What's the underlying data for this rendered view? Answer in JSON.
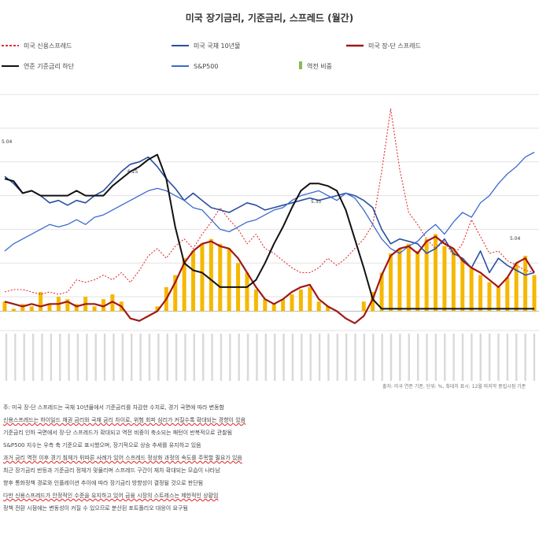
{
  "chart_data": {
    "type": "line",
    "title": "미국 장기금리, 기준금리, 스프레드 (월간)",
    "legend": [
      {
        "key": "credit_spread",
        "label": "미국 신용스프레드",
        "color": "#e03030",
        "style": "dashed"
      },
      {
        "key": "ust10y",
        "label": "미국 국채 10년물",
        "color": "#2a4fa0",
        "style": "solid"
      },
      {
        "key": "term_spread",
        "label": "미국 장-단 스프레드",
        "color": "#a01818",
        "style": "solid"
      },
      {
        "key": "fed_rate",
        "label": "연준 기준금리 하단",
        "color": "#111111",
        "style": "solid"
      },
      {
        "key": "sp500",
        "label": "S&P500",
        "color": "#3a6ad0",
        "style": "solid"
      },
      {
        "key": "rec",
        "label": "역전 비중",
        "color": "#88bb55",
        "style": "bar"
      }
    ],
    "x_tick_count": 60,
    "annotations": [
      "5.04",
      "6.25",
      "5.35",
      "5.04"
    ],
    "series": [
      {
        "name": "미국 신용스프레드",
        "values": [
          0.8,
          0.9,
          0.9,
          0.8,
          0.7,
          0.8,
          0.7,
          0.8,
          1.3,
          1.2,
          1.3,
          1.5,
          1.3,
          1.6,
          1.2,
          1.7,
          2.3,
          2.6,
          2.2,
          2.7,
          3.0,
          2.6,
          3.2,
          3.7,
          4.3,
          3.8,
          3.4,
          2.8,
          3.2,
          2.6,
          2.4,
          2.1,
          1.8,
          1.6,
          1.6,
          1.8,
          2.2,
          1.9,
          2.2,
          2.6,
          3.0,
          3.6,
          5.8,
          8.4,
          5.9,
          4.1,
          3.6,
          3.0,
          2.6,
          2.9,
          2.3,
          2.8,
          3.8,
          3.1,
          2.4,
          2.5,
          2.1,
          1.9,
          1.7,
          1.6
        ]
      },
      {
        "name": "미국 국채 10년물",
        "values": [
          5.6,
          5.3,
          4.9,
          5.0,
          4.8,
          4.5,
          4.6,
          4.4,
          4.6,
          4.5,
          4.8,
          5.0,
          5.4,
          5.8,
          6.1,
          6.2,
          6.4,
          6.0,
          5.5,
          5.1,
          4.6,
          4.9,
          4.6,
          4.3,
          4.2,
          4.1,
          4.3,
          4.5,
          4.4,
          4.2,
          4.3,
          4.4,
          4.5,
          4.6,
          4.7,
          4.6,
          4.7,
          4.8,
          4.9,
          4.8,
          4.6,
          4.3,
          3.4,
          2.8,
          3.0,
          2.9,
          2.8,
          2.4,
          2.6,
          3.0,
          2.4,
          2.2,
          1.8,
          2.5,
          1.6,
          2.2,
          1.9,
          1.7,
          1.5,
          1.6
        ]
      },
      {
        "name": "S&P500",
        "values": [
          2.5,
          2.8,
          3.0,
          3.2,
          3.4,
          3.6,
          3.5,
          3.6,
          3.8,
          3.6,
          3.9,
          4.0,
          4.2,
          4.4,
          4.6,
          4.8,
          5.0,
          5.1,
          5.0,
          4.8,
          4.6,
          4.3,
          4.2,
          3.8,
          3.4,
          3.3,
          3.5,
          3.7,
          3.8,
          4.0,
          4.2,
          4.3,
          4.6,
          4.8,
          4.9,
          5.0,
          4.8,
          4.6,
          4.9,
          4.7,
          4.2,
          3.6,
          3.0,
          2.6,
          2.4,
          2.7,
          2.9,
          3.3,
          3.6,
          3.2,
          3.7,
          4.1,
          3.9,
          4.5,
          4.8,
          5.3,
          5.7,
          6.0,
          6.4,
          6.6
        ]
      },
      {
        "name": "미국 장-단 스프레드",
        "values": [
          0.4,
          0.3,
          0.2,
          0.3,
          0.2,
          0.3,
          0.3,
          0.4,
          0.2,
          0.3,
          0.3,
          0.2,
          0.4,
          0.2,
          -0.3,
          -0.4,
          -0.2,
          0.0,
          0.5,
          1.2,
          2.0,
          2.5,
          2.8,
          2.9,
          2.7,
          2.6,
          2.2,
          1.6,
          1.0,
          0.5,
          0.3,
          0.5,
          0.8,
          1.0,
          1.1,
          0.5,
          0.2,
          0.0,
          -0.3,
          -0.5,
          -0.2,
          0.5,
          1.5,
          2.3,
          2.6,
          2.7,
          2.4,
          2.9,
          3.1,
          2.8,
          2.6,
          2.1,
          1.8,
          1.6,
          1.3,
          1.0,
          1.4,
          2.0,
          2.2,
          1.6
        ]
      },
      {
        "name": "연준 기준금리 하단",
        "values": [
          5.5,
          5.4,
          4.9,
          5.0,
          4.8,
          4.8,
          4.8,
          4.8,
          5.0,
          4.8,
          4.8,
          4.8,
          5.2,
          5.5,
          5.8,
          6.0,
          6.3,
          6.5,
          5.5,
          3.5,
          2.0,
          1.7,
          1.6,
          1.3,
          1.0,
          1.0,
          1.0,
          1.0,
          1.3,
          2.0,
          2.8,
          3.5,
          4.3,
          5.0,
          5.3,
          5.3,
          5.2,
          5.0,
          4.2,
          3.0,
          1.8,
          0.5,
          0.1,
          0.1,
          0.1,
          0.1,
          0.1,
          0.1,
          0.1,
          0.1,
          0.1,
          0.1,
          0.1,
          0.1,
          0.1,
          0.1,
          0.1,
          0.1,
          0.1,
          0.1
        ]
      },
      {
        "name": "역전 비중",
        "values": [
          0.4,
          0.1,
          0.3,
          0.2,
          0.8,
          0.3,
          0.6,
          0.5,
          0.3,
          0.6,
          0.2,
          0.5,
          0.7,
          0.4,
          0,
          0,
          0,
          0.2,
          1.0,
          1.5,
          2.2,
          2.5,
          2.8,
          3.0,
          2.8,
          2.6,
          2.0,
          1.6,
          0.9,
          0.5,
          0.3,
          0.5,
          0.7,
          0.9,
          1.0,
          0.4,
          0.2,
          0,
          0,
          0,
          0.4,
          0.8,
          1.6,
          2.4,
          2.6,
          2.8,
          2.5,
          3.0,
          3.2,
          2.7,
          2.6,
          2.2,
          1.8,
          1.5,
          1.2,
          1.0,
          1.4,
          2.0,
          2.3,
          1.5
        ]
      }
    ],
    "ylim": [
      -0.8,
      9.0
    ],
    "source": "출처: 미국 연준 기준, 단위: %, 최대치 표시: 12월 마지막 중립시점 기준",
    "grid": true,
    "legend_position": "top"
  },
  "notes": [
    "주: 미국 장-단 스프레드는 국채 10년물에서 기준금리를 차감한 수치로, 경기 국면에 따라 변동함",
    "신용스프레드는 하이일드 채권 금리와 국채 금리 차이로, 위험 회피 심리가 커질수록 확대되는 경향이 있음",
    "기준금리 인하 국면에서 장-단 스프레드가 확대되고 역전 비중이 축소되는 패턴이 반복적으로 관찰됨",
    "S&P500 지수는 우측 축 기준으로 표시했으며, 장기적으로 상승 추세를 유지하고 있음",
    "과거 금리 역전 이후 경기 침체가 뒤따른 사례가 있어 스프레드 정상화 과정의 속도를 주목할 필요가 있음",
    "최근 장기금리 반등과 기준금리 정체가 맞물리며 스프레드 구간이 재차 확대되는 모습이 나타남",
    "향후 통화정책 경로와 인플레이션 추이에 따라 장기금리 방향성이 결정될 것으로 판단됨",
    "다만 신용스프레드가 안정적인 수준을 유지하고 있어 금융 시장의 스트레스는 제한적인 상황임",
    "정책 전환 시점에는 변동성이 커질 수 있으므로 분산된 포트폴리오 대응이 요구됨"
  ]
}
